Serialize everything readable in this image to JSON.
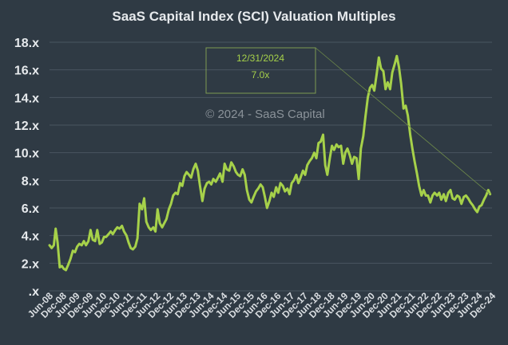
{
  "chart_data": {
    "type": "line",
    "title": "SaaS Capital Index (SCI) Valuation Multiples",
    "watermark": "© 2024 - SaaS Capital",
    "ylim": [
      0,
      18
    ],
    "yticks": [
      0,
      2,
      4,
      6,
      8,
      10,
      12,
      14,
      16,
      18
    ],
    "ytick_labels": [
      ".x",
      "2.x",
      "4.x",
      "6.x",
      "8.x",
      "10.x",
      "12.x",
      "14.x",
      "16.x",
      "18.x"
    ],
    "xlim": [
      2008.42,
      2024.92
    ],
    "xticks": [
      {
        "label": "Jun-08",
        "x": 2008.42
      },
      {
        "label": "Dec-08",
        "x": 2008.92
      },
      {
        "label": "Jun-09",
        "x": 2009.42
      },
      {
        "label": "Dec-09",
        "x": 2009.92
      },
      {
        "label": "Jun-10",
        "x": 2010.42
      },
      {
        "label": "Dec-10",
        "x": 2010.92
      },
      {
        "label": "Jun-11",
        "x": 2011.42
      },
      {
        "label": "Dec-11",
        "x": 2011.92
      },
      {
        "label": "Jun-12",
        "x": 2012.42
      },
      {
        "label": "Dec-12",
        "x": 2012.92
      },
      {
        "label": "Jun-13",
        "x": 2013.42
      },
      {
        "label": "Dec-13",
        "x": 2013.92
      },
      {
        "label": "Jun-14",
        "x": 2014.42
      },
      {
        "label": "Dec-14",
        "x": 2014.92
      },
      {
        "label": "Jun-15",
        "x": 2015.42
      },
      {
        "label": "Dec-15",
        "x": 2015.92
      },
      {
        "label": "Jun-16",
        "x": 2016.42
      },
      {
        "label": "Dec-16",
        "x": 2016.92
      },
      {
        "label": "Jun-17",
        "x": 2017.42
      },
      {
        "label": "Dec-17",
        "x": 2017.92
      },
      {
        "label": "Jun-18",
        "x": 2018.42
      },
      {
        "label": "Dec-18",
        "x": 2018.92
      },
      {
        "label": "Jun-19",
        "x": 2019.42
      },
      {
        "label": "Dec-19",
        "x": 2019.92
      },
      {
        "label": "Jun-20",
        "x": 2020.42
      },
      {
        "label": "Dec-20",
        "x": 2020.92
      },
      {
        "label": "Jun-21",
        "x": 2021.42
      },
      {
        "label": "Dec-21",
        "x": 2021.92
      },
      {
        "label": "Jun-22",
        "x": 2022.42
      },
      {
        "label": "Dec-22",
        "x": 2022.92
      },
      {
        "label": "Jun-23",
        "x": 2023.42
      },
      {
        "label": "Dec-23",
        "x": 2023.92
      },
      {
        "label": "Jun-24",
        "x": 2024.42
      },
      {
        "label": "Dec-24",
        "x": 2024.92
      }
    ],
    "series": [
      {
        "name": "SCI Valuation Multiple",
        "color": "#a6d14a",
        "points": [
          [
            2008.42,
            3.3
          ],
          [
            2008.5,
            3.1
          ],
          [
            2008.58,
            3.3
          ],
          [
            2008.65,
            4.5
          ],
          [
            2008.72,
            3.5
          ],
          [
            2008.8,
            1.7
          ],
          [
            2008.88,
            1.8
          ],
          [
            2008.95,
            1.6
          ],
          [
            2009.03,
            1.5
          ],
          [
            2009.12,
            1.9
          ],
          [
            2009.2,
            2.3
          ],
          [
            2009.29,
            2.9
          ],
          [
            2009.37,
            2.8
          ],
          [
            2009.45,
            3.2
          ],
          [
            2009.53,
            3.4
          ],
          [
            2009.62,
            3.3
          ],
          [
            2009.7,
            3.6
          ],
          [
            2009.78,
            3.3
          ],
          [
            2009.87,
            3.6
          ],
          [
            2009.95,
            4.4
          ],
          [
            2010.03,
            3.7
          ],
          [
            2010.12,
            3.6
          ],
          [
            2010.2,
            4.4
          ],
          [
            2010.29,
            3.4
          ],
          [
            2010.37,
            3.5
          ],
          [
            2010.45,
            3.9
          ],
          [
            2010.53,
            3.9
          ],
          [
            2010.62,
            4.1
          ],
          [
            2010.7,
            4.3
          ],
          [
            2010.78,
            4.1
          ],
          [
            2010.87,
            4.4
          ],
          [
            2010.95,
            4.6
          ],
          [
            2011.03,
            4.5
          ],
          [
            2011.12,
            4.7
          ],
          [
            2011.2,
            4.3
          ],
          [
            2011.29,
            4.0
          ],
          [
            2011.37,
            3.5
          ],
          [
            2011.45,
            3.1
          ],
          [
            2011.53,
            3.0
          ],
          [
            2011.62,
            3.2
          ],
          [
            2011.7,
            3.8
          ],
          [
            2011.78,
            6.3
          ],
          [
            2011.87,
            5.9
          ],
          [
            2011.95,
            6.7
          ],
          [
            2012.03,
            5.0
          ],
          [
            2012.12,
            4.6
          ],
          [
            2012.2,
            4.4
          ],
          [
            2012.29,
            4.6
          ],
          [
            2012.37,
            4.3
          ],
          [
            2012.45,
            5.9
          ],
          [
            2012.53,
            4.9
          ],
          [
            2012.62,
            4.6
          ],
          [
            2012.7,
            4.9
          ],
          [
            2012.78,
            5.2
          ],
          [
            2012.87,
            5.9
          ],
          [
            2012.95,
            6.3
          ],
          [
            2013.03,
            6.9
          ],
          [
            2013.12,
            7.1
          ],
          [
            2013.2,
            7.0
          ],
          [
            2013.29,
            7.8
          ],
          [
            2013.37,
            7.6
          ],
          [
            2013.45,
            8.3
          ],
          [
            2013.53,
            8.6
          ],
          [
            2013.62,
            8.4
          ],
          [
            2013.7,
            8.2
          ],
          [
            2013.78,
            8.8
          ],
          [
            2013.87,
            9.2
          ],
          [
            2013.95,
            8.7
          ],
          [
            2014.03,
            7.6
          ],
          [
            2014.12,
            6.5
          ],
          [
            2014.2,
            7.4
          ],
          [
            2014.29,
            7.8
          ],
          [
            2014.37,
            7.9
          ],
          [
            2014.45,
            7.7
          ],
          [
            2014.53,
            8.1
          ],
          [
            2014.62,
            7.9
          ],
          [
            2014.7,
            8.2
          ],
          [
            2014.78,
            8.5
          ],
          [
            2014.87,
            7.9
          ],
          [
            2014.95,
            9.2
          ],
          [
            2015.03,
            8.8
          ],
          [
            2015.12,
            8.7
          ],
          [
            2015.2,
            9.3
          ],
          [
            2015.29,
            9.0
          ],
          [
            2015.37,
            8.6
          ],
          [
            2015.45,
            8.4
          ],
          [
            2015.53,
            8.3
          ],
          [
            2015.62,
            8.8
          ],
          [
            2015.7,
            8.4
          ],
          [
            2015.78,
            7.3
          ],
          [
            2015.87,
            6.6
          ],
          [
            2015.95,
            6.4
          ],
          [
            2016.03,
            6.8
          ],
          [
            2016.12,
            7.2
          ],
          [
            2016.2,
            7.4
          ],
          [
            2016.29,
            7.7
          ],
          [
            2016.37,
            7.5
          ],
          [
            2016.45,
            6.8
          ],
          [
            2016.53,
            6.0
          ],
          [
            2016.62,
            6.5
          ],
          [
            2016.7,
            7.1
          ],
          [
            2016.78,
            6.8
          ],
          [
            2016.87,
            7.5
          ],
          [
            2016.95,
            7.1
          ],
          [
            2017.03,
            7.8
          ],
          [
            2017.12,
            7.6
          ],
          [
            2017.2,
            7.2
          ],
          [
            2017.29,
            7.4
          ],
          [
            2017.37,
            7.0
          ],
          [
            2017.45,
            7.8
          ],
          [
            2017.53,
            8.0
          ],
          [
            2017.62,
            8.4
          ],
          [
            2017.7,
            7.8
          ],
          [
            2017.78,
            8.2
          ],
          [
            2017.87,
            8.7
          ],
          [
            2017.95,
            8.4
          ],
          [
            2018.03,
            9.1
          ],
          [
            2018.12,
            9.4
          ],
          [
            2018.2,
            9.6
          ],
          [
            2018.29,
            10.0
          ],
          [
            2018.37,
            9.6
          ],
          [
            2018.45,
            10.7
          ],
          [
            2018.53,
            10.8
          ],
          [
            2018.62,
            11.3
          ],
          [
            2018.7,
            9.1
          ],
          [
            2018.78,
            8.4
          ],
          [
            2018.87,
            9.6
          ],
          [
            2018.95,
            10.5
          ],
          [
            2019.03,
            10.2
          ],
          [
            2019.12,
            10.6
          ],
          [
            2019.2,
            10.4
          ],
          [
            2019.29,
            10.5
          ],
          [
            2019.37,
            9.2
          ],
          [
            2019.45,
            10.0
          ],
          [
            2019.53,
            10.3
          ],
          [
            2019.62,
            9.8
          ],
          [
            2019.7,
            9.2
          ],
          [
            2019.78,
            9.7
          ],
          [
            2019.87,
            9.6
          ],
          [
            2019.95,
            8.1
          ],
          [
            2020.03,
            10.3
          ],
          [
            2020.12,
            11.2
          ],
          [
            2020.2,
            12.6
          ],
          [
            2020.29,
            14.0
          ],
          [
            2020.37,
            14.7
          ],
          [
            2020.45,
            14.9
          ],
          [
            2020.53,
            14.5
          ],
          [
            2020.62,
            15.7
          ],
          [
            2020.7,
            16.9
          ],
          [
            2020.78,
            16.1
          ],
          [
            2020.87,
            15.9
          ],
          [
            2020.95,
            14.6
          ],
          [
            2021.03,
            15.1
          ],
          [
            2021.12,
            14.6
          ],
          [
            2021.2,
            15.8
          ],
          [
            2021.29,
            16.4
          ],
          [
            2021.37,
            17.0
          ],
          [
            2021.45,
            16.2
          ],
          [
            2021.53,
            15.0
          ],
          [
            2021.62,
            13.2
          ],
          [
            2021.7,
            13.4
          ],
          [
            2021.78,
            12.7
          ],
          [
            2021.87,
            11.3
          ],
          [
            2021.95,
            10.3
          ],
          [
            2022.03,
            9.4
          ],
          [
            2022.12,
            8.5
          ],
          [
            2022.2,
            7.6
          ],
          [
            2022.29,
            6.9
          ],
          [
            2022.37,
            7.3
          ],
          [
            2022.45,
            6.9
          ],
          [
            2022.53,
            6.9
          ],
          [
            2022.62,
            6.4
          ],
          [
            2022.7,
            6.9
          ],
          [
            2022.78,
            7.1
          ],
          [
            2022.87,
            6.9
          ],
          [
            2022.95,
            7.1
          ],
          [
            2023.03,
            6.6
          ],
          [
            2023.12,
            7.0
          ],
          [
            2023.2,
            6.5
          ],
          [
            2023.29,
            7.1
          ],
          [
            2023.37,
            7.3
          ],
          [
            2023.45,
            6.7
          ],
          [
            2023.53,
            6.6
          ],
          [
            2023.62,
            6.9
          ],
          [
            2023.7,
            6.8
          ],
          [
            2023.78,
            6.3
          ],
          [
            2023.87,
            6.8
          ],
          [
            2023.95,
            6.9
          ],
          [
            2024.03,
            6.7
          ],
          [
            2024.12,
            6.4
          ],
          [
            2024.2,
            6.2
          ],
          [
            2024.29,
            5.9
          ],
          [
            2024.37,
            5.7
          ],
          [
            2024.45,
            6.1
          ],
          [
            2024.53,
            6.2
          ],
          [
            2024.62,
            6.6
          ],
          [
            2024.7,
            6.9
          ],
          [
            2024.78,
            7.3
          ],
          [
            2024.85,
            7.0
          ]
        ]
      }
    ],
    "annotation": {
      "date": "12/31/2024",
      "value": "7.0x",
      "point": [
        2024.85,
        7.0
      ]
    }
  }
}
